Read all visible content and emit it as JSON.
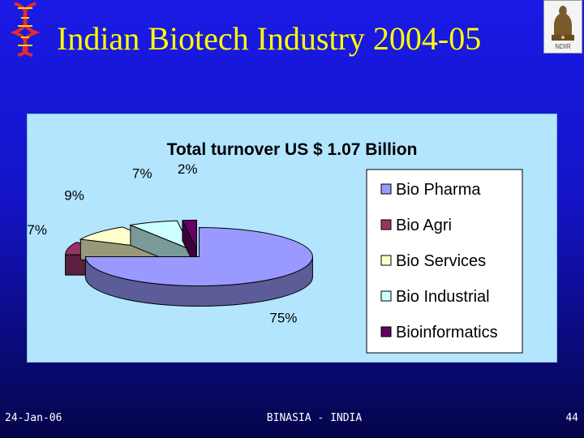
{
  "slide": {
    "title": "Indian Biotech Industry 2004-05",
    "footer_date": "24-Jan-06",
    "footer_center": "BINASIA - INDIA",
    "page_number": "44"
  },
  "logos": {
    "left": "dna-helix-icon",
    "right": "national-emblem-icon",
    "emblem_caption": "NDIR"
  },
  "colors": {
    "title": "#ffff00",
    "chart_background": "#b3e5ff"
  },
  "chart_data": {
    "type": "pie",
    "title": "Total turnover US $ 1.07 Billion",
    "legend_placement": "right",
    "slices": [
      {
        "name": "Bio Pharma",
        "value": 75,
        "label": "75%",
        "color": "#9999ff"
      },
      {
        "name": "Bio Agri",
        "value": 7,
        "label": "7%",
        "color": "#993366"
      },
      {
        "name": "Bio Services",
        "value": 9,
        "label": "9%",
        "color": "#ffffcc"
      },
      {
        "name": "Bio Industrial",
        "value": 7,
        "label": "7%",
        "color": "#ccffff"
      },
      {
        "name": "Bioinformatics",
        "value": 2,
        "label": "2%",
        "color": "#660066"
      }
    ]
  }
}
